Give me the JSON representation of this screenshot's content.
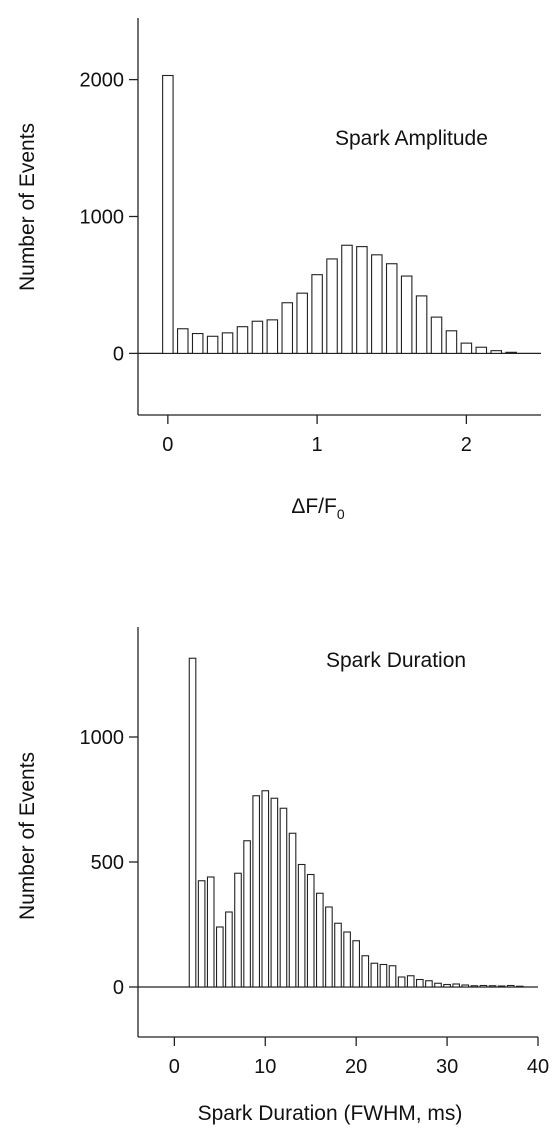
{
  "chart_data": [
    {
      "type": "bar",
      "title": "",
      "annotation": "Spark Amplitude",
      "xlabel_main": "ΔF/F",
      "xlabel_sub": "0",
      "ylabel": "Number of Events",
      "xlim": [
        -0.2,
        2.5
      ],
      "ylim": [
        -450,
        2450
      ],
      "xticks": [
        0,
        1,
        2
      ],
      "yticks": [
        0,
        1000,
        2000
      ],
      "bar_width": 0.07,
      "x": [
        0,
        0.1,
        0.2,
        0.3,
        0.4,
        0.5,
        0.6,
        0.7,
        0.8,
        0.9,
        1.0,
        1.1,
        1.2,
        1.3,
        1.4,
        1.5,
        1.6,
        1.7,
        1.8,
        1.9,
        2.0,
        2.1,
        2.2,
        2.3
      ],
      "values": [
        2030,
        180,
        145,
        125,
        150,
        195,
        235,
        245,
        370,
        440,
        575,
        690,
        790,
        780,
        720,
        655,
        565,
        420,
        265,
        165,
        75,
        45,
        20,
        8
      ]
    },
    {
      "type": "bar",
      "title": "",
      "annotation": "Spark Duration",
      "xlabel": "Spark Duration (FWHM, ms)",
      "ylabel": "Number of Events",
      "xlim": [
        -4,
        40
      ],
      "ylim": [
        -200,
        1440
      ],
      "xticks": [
        0,
        10,
        20,
        30,
        40
      ],
      "yticks": [
        0,
        500,
        1000
      ],
      "bar_width": 0.72,
      "x": [
        2,
        3,
        4,
        5,
        6,
        7,
        8,
        9,
        10,
        11,
        12,
        13,
        14,
        15,
        16,
        17,
        18,
        19,
        20,
        21,
        22,
        23,
        24,
        25,
        26,
        27,
        28,
        29,
        30,
        31,
        32,
        33,
        34,
        35,
        36,
        37,
        38
      ],
      "values": [
        1315,
        425,
        440,
        240,
        300,
        455,
        585,
        765,
        785,
        755,
        715,
        615,
        490,
        450,
        375,
        320,
        255,
        220,
        185,
        125,
        95,
        90,
        85,
        40,
        45,
        30,
        25,
        15,
        10,
        12,
        8,
        5,
        6,
        5,
        4,
        6,
        3
      ]
    }
  ]
}
